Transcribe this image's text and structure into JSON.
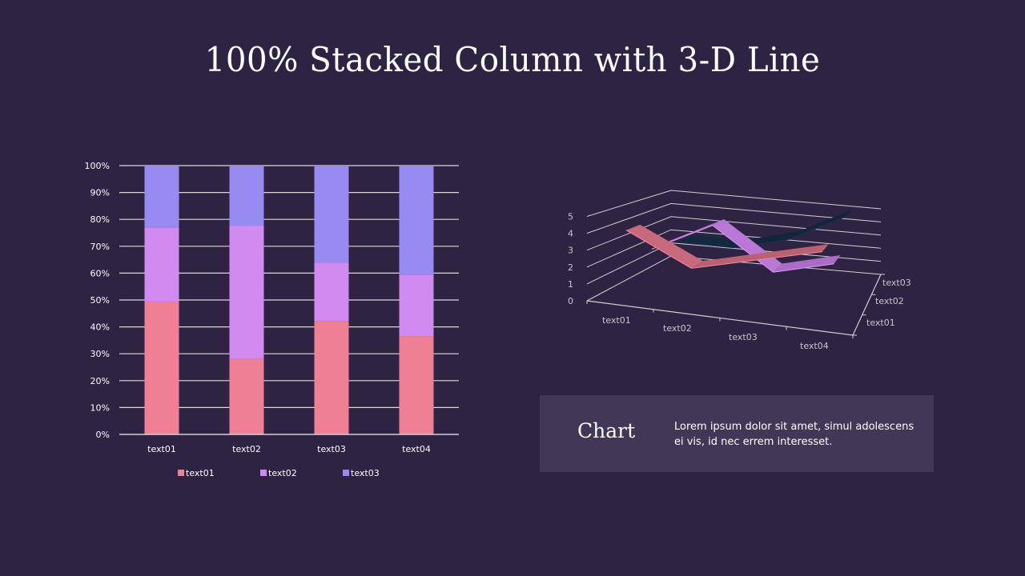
{
  "page": {
    "title": "100% Stacked Column with 3-D Line",
    "background": "#2f2343"
  },
  "info_box": {
    "heading": "Chart",
    "body": "Lorem ipsum dolor sit amet, simul adolescens ei vis, id nec errem  interesset.",
    "background": "#433757"
  },
  "chart_data": [
    {
      "type": "bar",
      "subtype": "100% stacked column",
      "title": "",
      "categories": [
        "text01",
        "text02",
        "text03",
        "text04"
      ],
      "series": [
        {
          "name": "text01",
          "color": "#ef7f95",
          "values": [
            4.3,
            2.5,
            3.5,
            4.5
          ]
        },
        {
          "name": "text02",
          "color": "#d18af0",
          "values": [
            2.4,
            4.4,
            1.8,
            2.8
          ]
        },
        {
          "name": "text03",
          "color": "#978af0",
          "values": [
            2.0,
            2.0,
            3.0,
            5.0
          ]
        }
      ],
      "percent_values": {
        "text01": [
          49.4,
          28.1,
          42.2,
          36.6
        ],
        "text02": [
          27.6,
          49.4,
          21.7,
          22.8
        ],
        "text03": [
          23.0,
          22.5,
          36.1,
          40.7
        ]
      },
      "xlabel": "",
      "ylabel": "",
      "ylim": [
        0,
        100
      ],
      "yticks": [
        "0%",
        "10%",
        "20%",
        "30%",
        "40%",
        "50%",
        "60%",
        "70%",
        "80%",
        "90%",
        "100%"
      ],
      "grid": true,
      "legend": {
        "position": "bottom",
        "entries": [
          "text01",
          "text02",
          "text03"
        ]
      }
    },
    {
      "type": "line",
      "subtype": "3-D line",
      "title": "",
      "categories": [
        "text01",
        "text02",
        "text03",
        "text04"
      ],
      "series": [
        {
          "name": "text01",
          "color": "#c9697d",
          "values": [
            4.3,
            2.5,
            3.5,
            4.5
          ]
        },
        {
          "name": "text02",
          "color": "#b977d6",
          "values": [
            2.4,
            4.4,
            1.8,
            2.8
          ]
        },
        {
          "name": "text03",
          "color": "#14283f",
          "values": [
            2.0,
            2.0,
            3.0,
            5.0
          ]
        }
      ],
      "depth_labels": [
        "text01",
        "text02",
        "text03"
      ],
      "yticks": [
        "0",
        "1",
        "2",
        "3",
        "4",
        "5"
      ],
      "ylim": [
        0,
        6
      ],
      "grid": true,
      "legend": null
    }
  ]
}
